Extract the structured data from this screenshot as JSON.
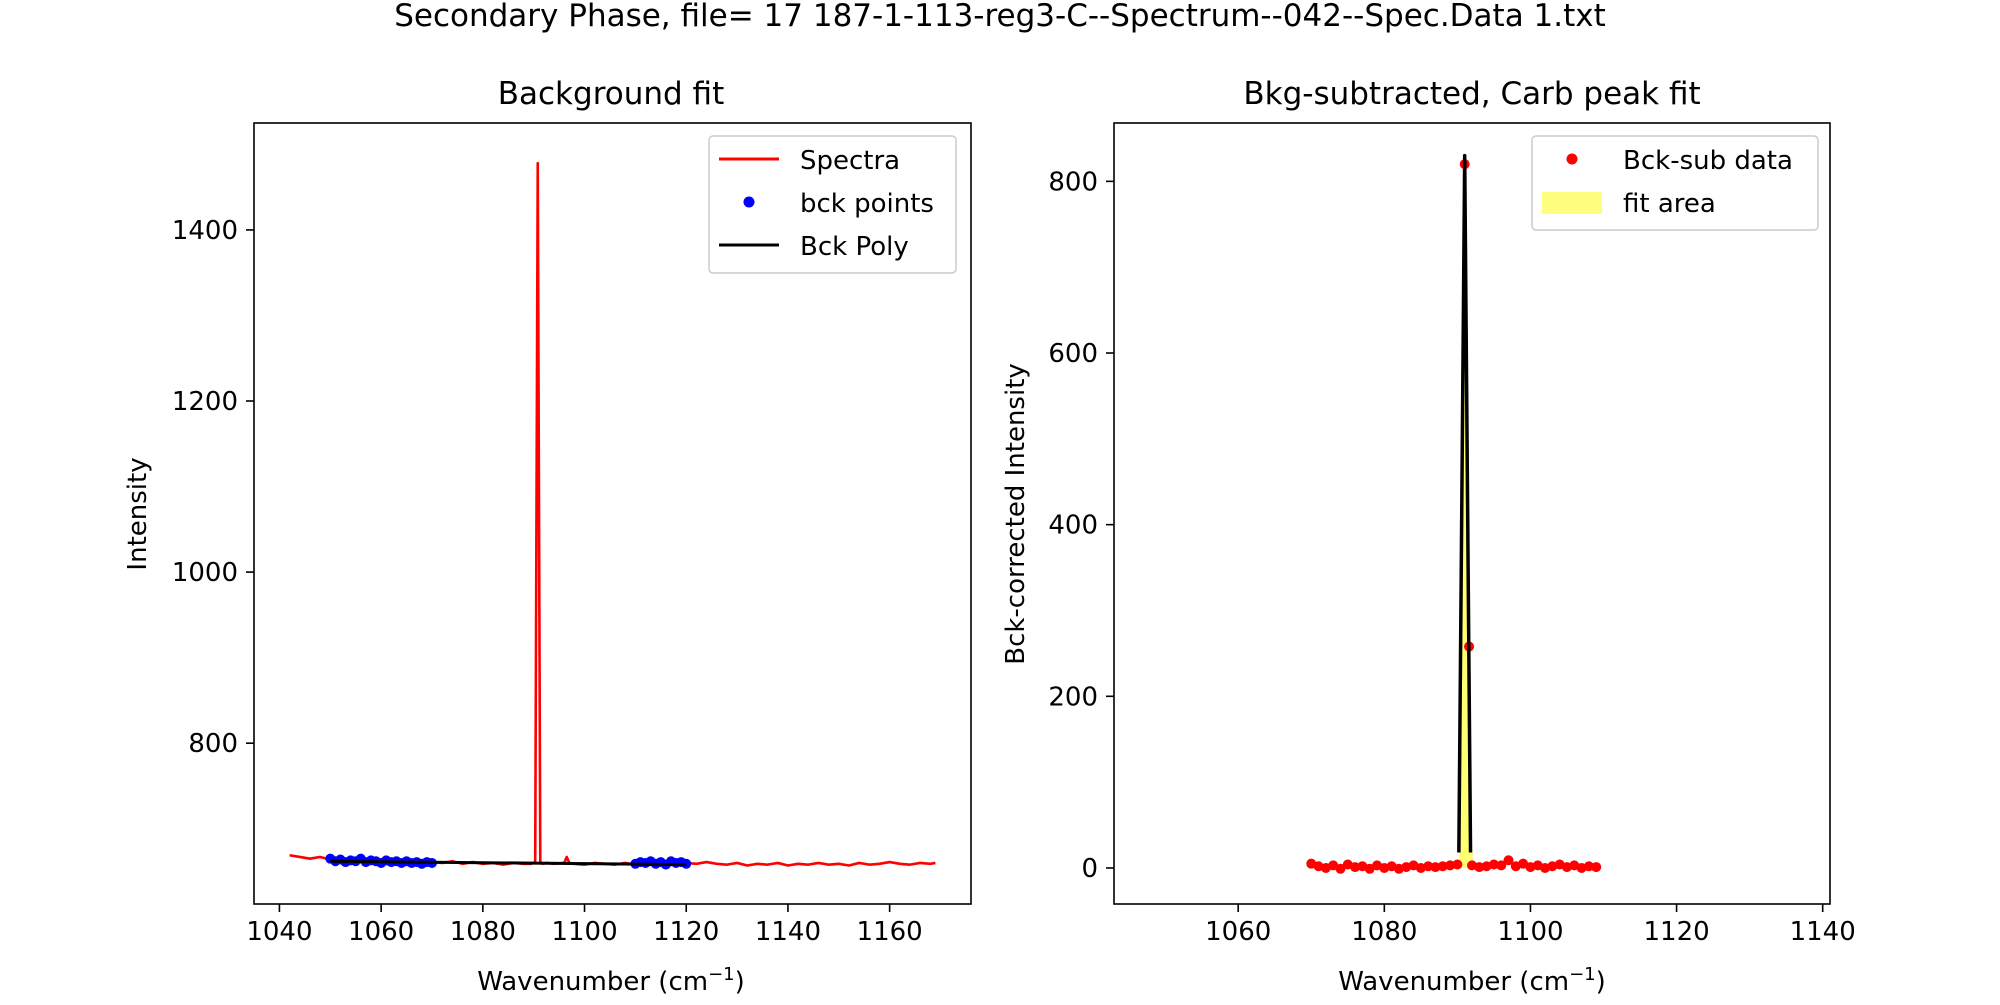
{
  "suptitle": "Secondary Phase, file= 17 187-1-113-reg3-C--Spectrum--042--Spec.Data 1.txt",
  "colors": {
    "spectra": "#ff0000",
    "bck_points": "#0000ff",
    "bck_poly": "#000000",
    "bcksub": "#ff0000",
    "fit_area": "#ffff00",
    "fit_line": "#000000"
  },
  "chart_data": [
    {
      "type": "line",
      "title": "Background fit",
      "xlabel": "Wavenumber (cm",
      "xlabel_sup": "−1",
      "xlabel_end": ")",
      "ylabel": "Intensity",
      "xlim": [
        1035,
        1176
      ],
      "ylim": [
        612,
        1525
      ],
      "xticks": [
        1040,
        1060,
        1080,
        1100,
        1120,
        1140,
        1160
      ],
      "yticks": [
        800,
        1000,
        1200,
        1400
      ],
      "legend_position": "top-right",
      "legend": [
        "Spectra",
        "bck points",
        "Bck Poly"
      ],
      "series": [
        {
          "name": "Spectra",
          "style": "line",
          "x": [
            1042,
            1044,
            1046,
            1048,
            1050,
            1052,
            1054,
            1056,
            1058,
            1060,
            1062,
            1064,
            1066,
            1068,
            1070,
            1072,
            1074,
            1076,
            1078,
            1080,
            1082,
            1084,
            1086,
            1088,
            1089.5,
            1090.3,
            1090.8,
            1091.3,
            1091.8,
            1092.5,
            1094,
            1096,
            1096.5,
            1097,
            1098,
            1100,
            1102,
            1104,
            1106,
            1108,
            1110,
            1112,
            1114,
            1116,
            1118,
            1120,
            1122,
            1124,
            1126,
            1128,
            1130,
            1132,
            1134,
            1136,
            1138,
            1140,
            1142,
            1144,
            1146,
            1148,
            1150,
            1152,
            1154,
            1156,
            1158,
            1160,
            1162,
            1164,
            1166,
            1168,
            1169
          ],
          "y": [
            669,
            667,
            665,
            667,
            664,
            666,
            663,
            665,
            664,
            662,
            663,
            661,
            662,
            660,
            661,
            660,
            662,
            659,
            661,
            659,
            660,
            658,
            660,
            659,
            659,
            661,
            1478,
            661,
            659,
            660,
            659,
            660,
            667,
            660,
            659,
            658,
            660,
            659,
            658,
            660,
            658,
            660,
            659,
            660,
            658,
            660,
            659,
            661,
            659,
            658,
            660,
            657,
            659,
            658,
            660,
            657,
            659,
            658,
            660,
            658,
            659,
            657,
            660,
            658,
            659,
            661,
            659,
            658,
            660,
            659,
            660
          ]
        },
        {
          "name": "bck points",
          "style": "points",
          "x": [
            1050,
            1051,
            1052,
            1053,
            1054,
            1055,
            1056,
            1057,
            1058,
            1059,
            1060,
            1061,
            1062,
            1063,
            1064,
            1065,
            1066,
            1067,
            1068,
            1069,
            1070,
            1110,
            1111,
            1112,
            1113,
            1114,
            1115,
            1116,
            1117,
            1118,
            1119,
            1120
          ],
          "y": [
            665,
            662,
            664,
            661,
            663,
            662,
            665,
            661,
            663,
            662,
            660,
            663,
            661,
            662,
            660,
            662,
            660,
            661,
            659,
            661,
            660,
            659,
            661,
            660,
            662,
            659,
            661,
            658,
            662,
            660,
            661,
            659
          ]
        },
        {
          "name": "Bck Poly",
          "style": "line",
          "x": [
            1050,
            1120
          ],
          "y": [
            662,
            658
          ]
        }
      ]
    },
    {
      "type": "scatter",
      "title": "Bkg-subtracted, Carb peak fit",
      "xlabel": "Wavenumber (cm",
      "xlabel_sup": "−1",
      "xlabel_end": ")",
      "ylabel": "Bck-corrected Intensity",
      "xlim": [
        1043,
        1141
      ],
      "ylim": [
        -42,
        868
      ],
      "xticks": [
        1060,
        1080,
        1100,
        1120,
        1140
      ],
      "yticks": [
        0,
        200,
        400,
        600,
        800
      ],
      "legend_position": "top-right",
      "legend": [
        "Bck-sub data",
        "fit area"
      ],
      "series": [
        {
          "name": "Bck-sub data",
          "style": "points",
          "x": [
            1070,
            1071,
            1072,
            1073,
            1074,
            1075,
            1076,
            1077,
            1078,
            1079,
            1080,
            1081,
            1082,
            1083,
            1084,
            1085,
            1086,
            1087,
            1088,
            1089,
            1090,
            1091,
            1091.6,
            1092,
            1093,
            1094,
            1095,
            1096,
            1097,
            1098,
            1099,
            1100,
            1101,
            1102,
            1103,
            1104,
            1105,
            1106,
            1107,
            1108,
            1109
          ],
          "y": [
            5,
            2,
            0,
            3,
            -1,
            4,
            1,
            2,
            -1,
            3,
            0,
            2,
            -1,
            1,
            3,
            0,
            2,
            1,
            2,
            3,
            4,
            820,
            258,
            3,
            1,
            2,
            4,
            3,
            9,
            2,
            5,
            1,
            3,
            0,
            2,
            4,
            1,
            3,
            0,
            2,
            1
          ]
        }
      ],
      "fit_curve": {
        "name": "fit",
        "x": [
          1090.2,
          1090.6,
          1091.0,
          1091.4,
          1091.8
        ],
        "y": [
          18,
          420,
          830,
          420,
          18
        ]
      },
      "fit_area": {
        "x": [
          1090.2,
          1090.6,
          1091.0,
          1091.4,
          1091.8,
          1092.1
        ],
        "y": [
          18,
          420,
          830,
          420,
          18,
          18
        ]
      }
    }
  ]
}
